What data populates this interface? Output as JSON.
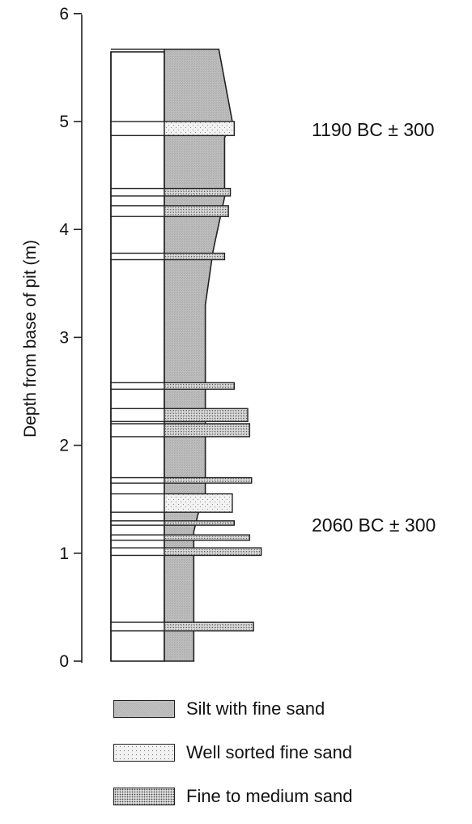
{
  "axis": {
    "title": "Depth from base of pit (m)",
    "ticks": [
      "0",
      "1",
      "2",
      "3",
      "4",
      "5",
      "6"
    ]
  },
  "colors": {
    "silt": "#b9b9b9",
    "well_sorted": "#ececec",
    "fine_medium": "#cfcfcf",
    "outline": "#222222"
  },
  "dates": [
    {
      "label": "1190 BC ± 300",
      "depth_m": 4.95
    },
    {
      "label": "2060 BC ± 300",
      "depth_m": 1.25
    }
  ],
  "legend": [
    {
      "label": "Silt with fine sand",
      "pattern": "silt"
    },
    {
      "label": "Well sorted fine sand",
      "pattern": "well_sorted"
    },
    {
      "label": "Fine to medium sand",
      "pattern": "fine_medium"
    }
  ],
  "chart_data": {
    "type": "other",
    "ylabel": "Depth from base of pit (m)",
    "ylim": [
      0,
      6
    ],
    "profile_top_m": 5.67,
    "silt_right_edge": [
      [
        0,
        0.43
      ],
      [
        1.2,
        0.43
      ],
      [
        1.35,
        0.45
      ],
      [
        1.55,
        0.49
      ],
      [
        3.3,
        0.49
      ],
      [
        3.8,
        0.53
      ],
      [
        4.05,
        0.56
      ],
      [
        4.3,
        0.59
      ],
      [
        4.85,
        0.59
      ],
      [
        5.0,
        0.63
      ],
      [
        5.67,
        0.56
      ]
    ],
    "sand_beds": [
      {
        "type": "fine_medium",
        "bottom_m": 5.0,
        "top_m": 4.87,
        "extent": 0.64,
        "note": "well sorted"
      },
      {
        "type": "fine_medium",
        "bottom_m": 4.31,
        "top_m": 4.38,
        "extent": 0.62
      },
      {
        "type": "fine_medium",
        "bottom_m": 4.12,
        "top_m": 4.22,
        "extent": 0.61
      },
      {
        "type": "fine_medium",
        "bottom_m": 3.72,
        "top_m": 3.78,
        "extent": 0.59
      },
      {
        "type": "fine_medium",
        "bottom_m": 2.52,
        "top_m": 2.58,
        "extent": 0.64
      },
      {
        "type": "fine_medium",
        "bottom_m": 2.22,
        "top_m": 2.34,
        "extent": 0.71
      },
      {
        "type": "fine_medium",
        "bottom_m": 2.08,
        "top_m": 2.2,
        "extent": 0.72
      },
      {
        "type": "fine_medium",
        "bottom_m": 1.65,
        "top_m": 1.7,
        "extent": 0.73
      },
      {
        "type": "well_sorted",
        "bottom_m": 1.38,
        "top_m": 1.55,
        "extent": 0.63
      },
      {
        "type": "fine_medium",
        "bottom_m": 1.26,
        "top_m": 1.3,
        "extent": 0.64
      },
      {
        "type": "fine_medium",
        "bottom_m": 1.12,
        "top_m": 1.17,
        "extent": 0.72
      },
      {
        "type": "fine_medium",
        "bottom_m": 0.98,
        "top_m": 1.05,
        "extent": 0.78
      },
      {
        "type": "fine_medium",
        "bottom_m": 0.28,
        "top_m": 0.36,
        "extent": 0.74
      }
    ]
  }
}
